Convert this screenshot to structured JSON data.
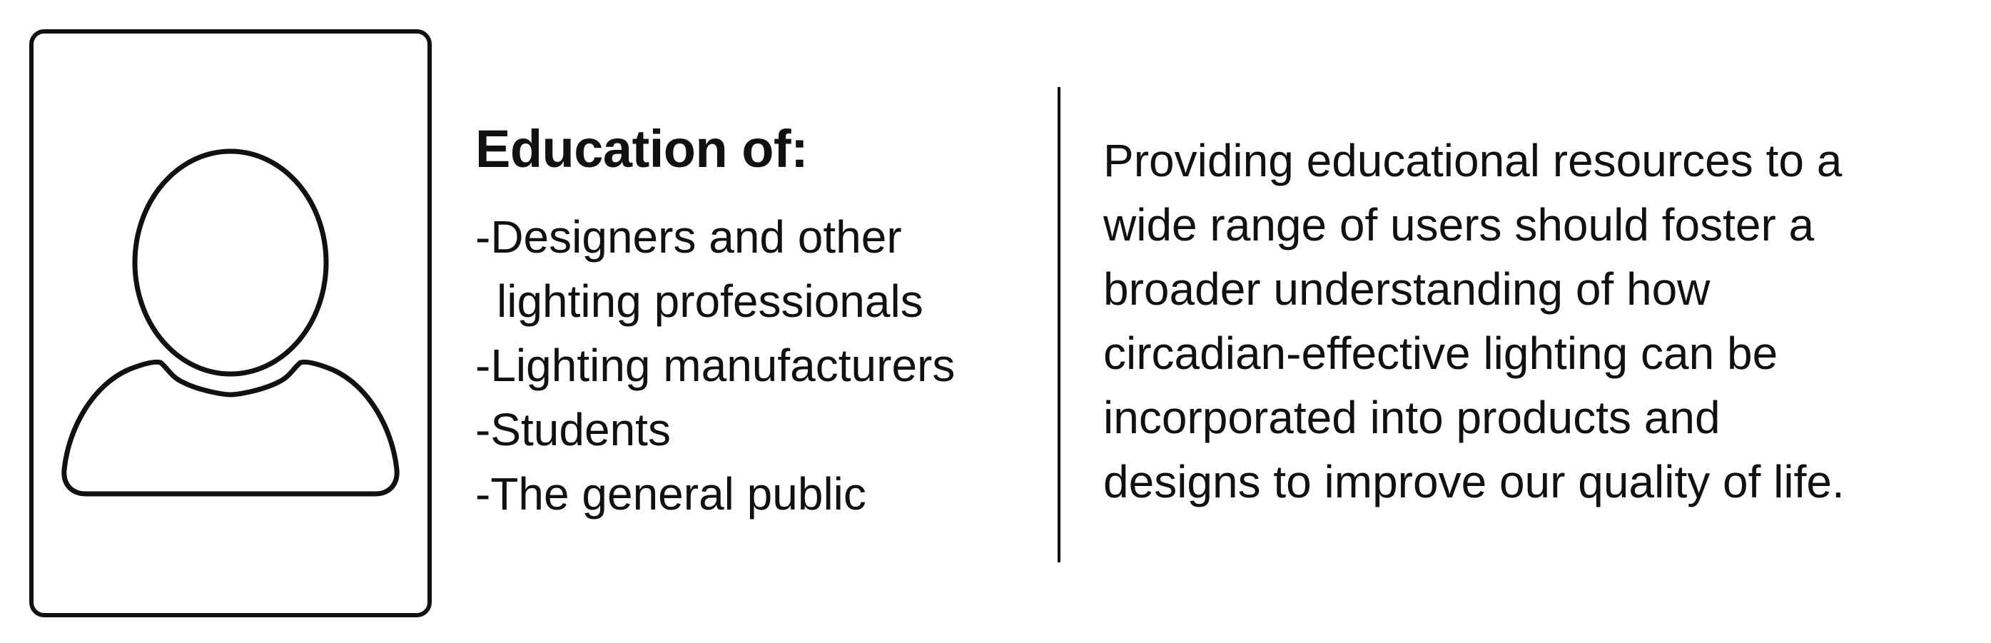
{
  "avatar": {
    "icon": "person-silhouette-icon"
  },
  "audience": {
    "heading": "Education of:",
    "items": [
      {
        "line1": "-Designers and other",
        "line2": "lighting professionals"
      },
      {
        "line1": "-Lighting manufacturers"
      },
      {
        "line1": "-Students"
      },
      {
        "line1": "-The general public"
      }
    ]
  },
  "description": {
    "lines": [
      "Providing educational resources to a",
      "wide range of users should foster a",
      "broader understanding of how",
      "circadian-effective lighting can be",
      "incorporated into products and",
      "designs to improve our quality of life."
    ]
  },
  "colors": {
    "ink": "#111111",
    "background": "#ffffff"
  }
}
